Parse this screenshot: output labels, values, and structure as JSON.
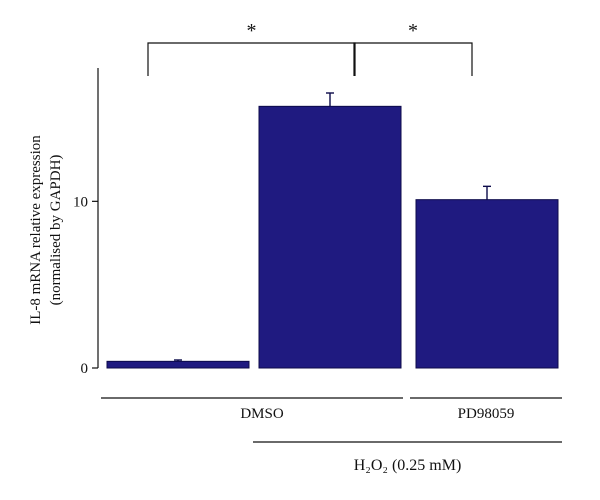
{
  "chart_data": {
    "type": "bar",
    "title": "",
    "xlabel": "",
    "ylabel_line1": "IL-8 mRNA relative expression",
    "ylabel_line2": "(normalised by GAPDH)",
    "ylim": [
      0,
      18
    ],
    "yticks": [
      {
        "value": 0,
        "label": "0"
      },
      {
        "value": 10,
        "label": "10"
      }
    ],
    "bars": [
      {
        "value": 0.4,
        "error": 0.08
      },
      {
        "value": 15.7,
        "error": 0.8
      },
      {
        "value": 10.1,
        "error": 0.8
      }
    ],
    "bar_color": "#1f1a80",
    "groups": [
      {
        "label": "DMSO",
        "from_bar": 0,
        "to_bar": 1
      },
      {
        "label": "PD98059",
        "from_bar": 2,
        "to_bar": 2
      }
    ],
    "treatment": {
      "label": "H₂O₂ (0.25 mM)",
      "from_bar": 1,
      "to_bar": 2
    },
    "significance": [
      {
        "from_bar": 0,
        "to_bar": 1,
        "label": "*"
      },
      {
        "from_bar": 1,
        "to_bar": 2,
        "label": "*"
      }
    ]
  }
}
